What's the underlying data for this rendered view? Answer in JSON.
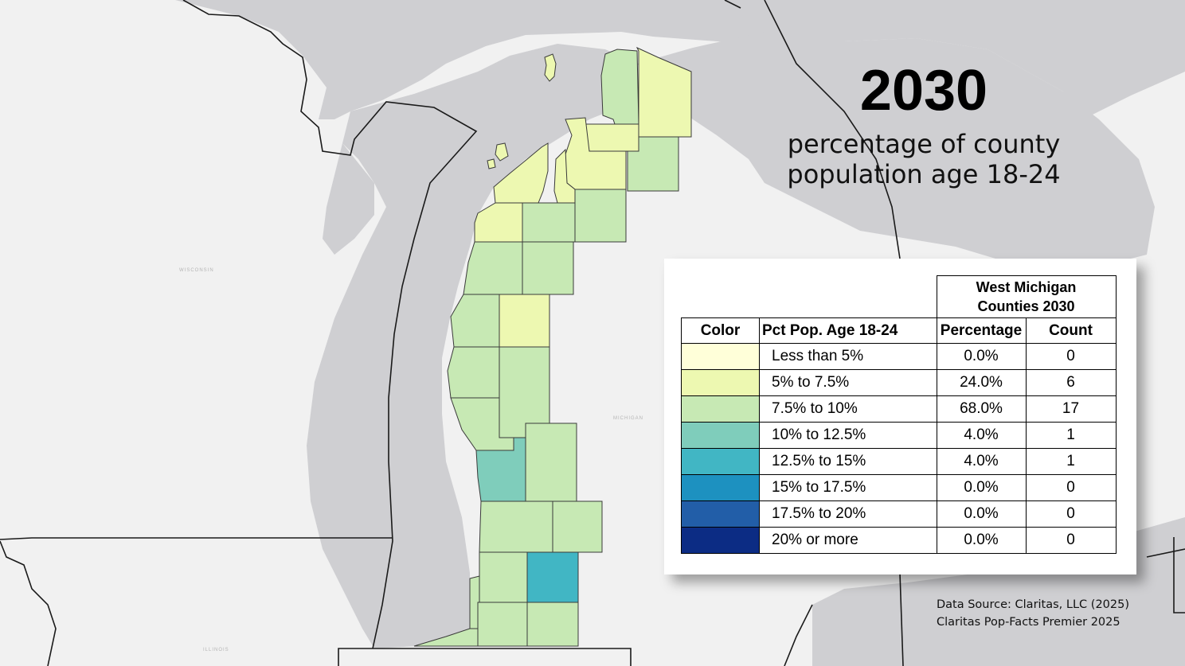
{
  "title": {
    "year": "2030",
    "subtitle_line1": "percentage of county",
    "subtitle_line2": "population age 18-24"
  },
  "map_labels": {
    "wisconsin": "WISCONSIN",
    "michigan": "MICHIGAN",
    "illinois": "ILLINOIS"
  },
  "palette": {
    "c1": "#ffffd9",
    "c2": "#edf8b1",
    "c3": "#c7e9b4",
    "c4": "#7fcdbb",
    "c5": "#41b6c4",
    "c6": "#1d91c0",
    "c7": "#225ea8",
    "c8": "#0c2c84",
    "water": "#cfcfd2",
    "land": "#f1f1f1"
  },
  "legend": {
    "group_header_line1": "West Michigan",
    "group_header_line2": "Counties 2030",
    "col_color": "Color",
    "col_category": "Pct Pop. Age 18-24",
    "col_percentage": "Percentage",
    "col_count": "Count",
    "rows": [
      {
        "color": "#ffffd9",
        "label": "Less than 5%",
        "percentage": "0.0%",
        "count": "0"
      },
      {
        "color": "#edf8b1",
        "label": "5% to 7.5%",
        "percentage": "24.0%",
        "count": "6"
      },
      {
        "color": "#c7e9b4",
        "label": "7.5% to 10%",
        "percentage": "68.0%",
        "count": "17"
      },
      {
        "color": "#7fcdbb",
        "label": "10% to 12.5%",
        "percentage": "4.0%",
        "count": "1"
      },
      {
        "color": "#41b6c4",
        "label": "12.5% to 15%",
        "percentage": "4.0%",
        "count": "1"
      },
      {
        "color": "#1d91c0",
        "label": "15% to 17.5%",
        "percentage": "0.0%",
        "count": "0"
      },
      {
        "color": "#225ea8",
        "label": "17.5% to 20%",
        "percentage": "0.0%",
        "count": "0"
      },
      {
        "color": "#0c2c84",
        "label": "20% or more",
        "percentage": "0.0%",
        "count": "0"
      }
    ]
  },
  "source": {
    "line1": "Data Source: Claritas, LLC (2025)",
    "line2": "Claritas Pop-Facts Premier 2025"
  }
}
